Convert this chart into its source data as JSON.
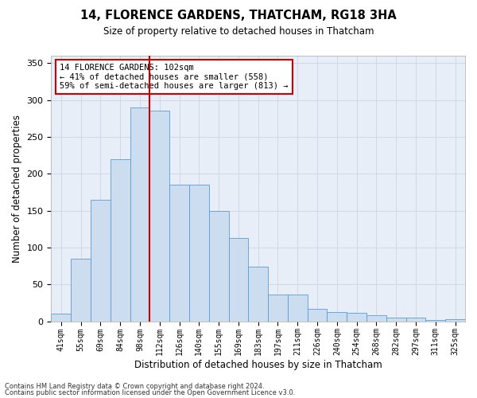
{
  "title": "14, FLORENCE GARDENS, THATCHAM, RG18 3HA",
  "subtitle": "Size of property relative to detached houses in Thatcham",
  "xlabel": "Distribution of detached houses by size in Thatcham",
  "ylabel": "Number of detached properties",
  "categories": [
    "41sqm",
    "55sqm",
    "69sqm",
    "84sqm",
    "98sqm",
    "112sqm",
    "126sqm",
    "140sqm",
    "155sqm",
    "169sqm",
    "183sqm",
    "197sqm",
    "211sqm",
    "226sqm",
    "240sqm",
    "254sqm",
    "268sqm",
    "282sqm",
    "297sqm",
    "311sqm",
    "325sqm"
  ],
  "values": [
    10,
    85,
    165,
    220,
    290,
    285,
    185,
    185,
    150,
    113,
    74,
    36,
    36,
    17,
    12,
    11,
    8,
    5,
    5,
    2,
    3
  ],
  "bar_color": "#ccddf0",
  "bar_edge_color": "#5b9bd5",
  "vline_color": "#cc0000",
  "annotation_text": "14 FLORENCE GARDENS: 102sqm\n← 41% of detached houses are smaller (558)\n59% of semi-detached houses are larger (813) →",
  "annotation_box_color": "#ffffff",
  "annotation_box_edge_color": "#cc0000",
  "ylim": [
    0,
    360
  ],
  "yticks": [
    0,
    50,
    100,
    150,
    200,
    250,
    300,
    350
  ],
  "grid_color": "#d0d8e8",
  "background_color": "#e8eef8",
  "footer1": "Contains HM Land Registry data © Crown copyright and database right 2024.",
  "footer2": "Contains public sector information licensed under the Open Government Licence v3.0."
}
